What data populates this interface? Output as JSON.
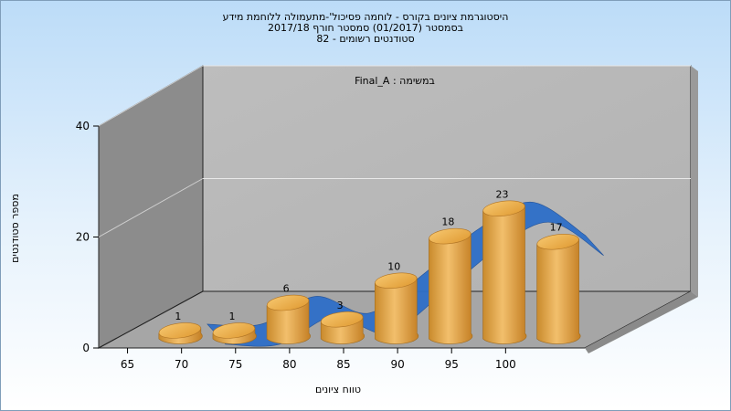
{
  "chart_data": {
    "type": "bar",
    "title_lines": [
      "היסטוגרמת ציונים בקורס - לוחמה פסיכול'-מתעמולה ללוחמת מידע",
      "בסמסטר  (01/2017)  סמסטר חורף 2017/18",
      "סטודנטים רשומים - 82"
    ],
    "annotation": "במשימה : Final_A",
    "xlabel": "טווח ציונים",
    "ylabel": "מספר סטודנטים",
    "categories": [
      "65",
      "70",
      "75",
      "80",
      "85",
      "90",
      "95",
      "100"
    ],
    "values": [
      1,
      1,
      6,
      3,
      10,
      18,
      23,
      17
    ],
    "y_ticks": [
      "0",
      "20",
      "40"
    ],
    "ylim": [
      0,
      40
    ],
    "grid": true,
    "bar_color": "#e6a13c",
    "trend_color": "#2e6fc8",
    "wall_color": "#b8b8b8"
  }
}
